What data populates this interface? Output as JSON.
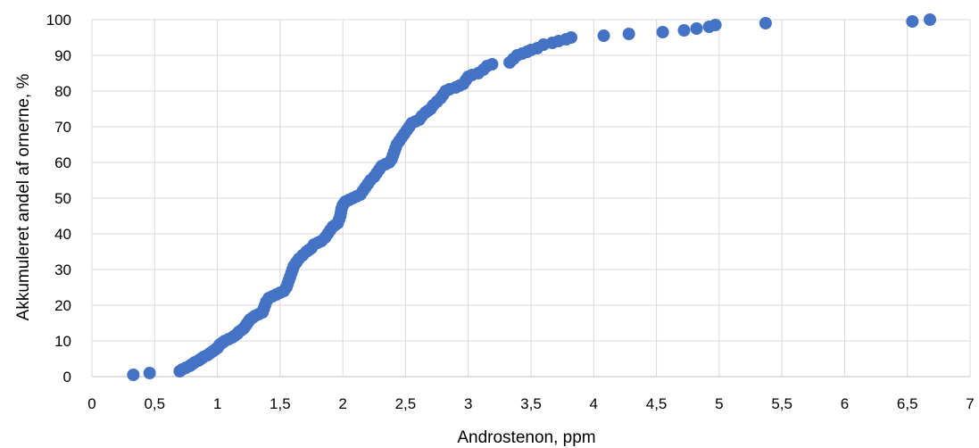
{
  "chart_data": {
    "type": "scatter",
    "title": "",
    "xlabel": "Androstenon, ppm",
    "ylabel": "Akkumuleret andel af ornerne, %",
    "xlim": [
      0,
      7
    ],
    "ylim": [
      0,
      100
    ],
    "x_ticks": [
      0,
      0.5,
      1,
      1.5,
      2,
      2.5,
      3,
      3.5,
      4,
      4.5,
      5,
      5.5,
      6,
      6.5,
      7
    ],
    "x_tick_labels": [
      "0",
      "0,5",
      "1",
      "1,5",
      "2",
      "2,5",
      "3",
      "3,5",
      "4",
      "4,5",
      "5",
      "5,5",
      "6",
      "6,5",
      "7"
    ],
    "y_ticks": [
      0,
      10,
      20,
      30,
      40,
      50,
      60,
      70,
      80,
      90,
      100
    ],
    "y_tick_labels": [
      "0",
      "10",
      "20",
      "30",
      "40",
      "50",
      "60",
      "70",
      "80",
      "90",
      "100"
    ],
    "grid": true,
    "legend": "none",
    "marker_color": "#4472C4",
    "points": [
      [
        0.33,
        0.5
      ],
      [
        0.46,
        1.0
      ],
      [
        0.7,
        1.5
      ],
      [
        0.72,
        2.0
      ],
      [
        0.75,
        2.5
      ],
      [
        0.78,
        3.0
      ],
      [
        0.8,
        3.5
      ],
      [
        0.82,
        4.0
      ],
      [
        0.85,
        4.5
      ],
      [
        0.87,
        5.0
      ],
      [
        0.89,
        5.5
      ],
      [
        0.92,
        6.0
      ],
      [
        0.94,
        6.5
      ],
      [
        0.96,
        7.0
      ],
      [
        0.98,
        7.5
      ],
      [
        1.0,
        8.0
      ],
      [
        1.01,
        8.5
      ],
      [
        1.02,
        9.0
      ],
      [
        1.04,
        9.5
      ],
      [
        1.06,
        10.0
      ],
      [
        1.09,
        10.5
      ],
      [
        1.12,
        11.0
      ],
      [
        1.14,
        11.5
      ],
      [
        1.16,
        12.0
      ],
      [
        1.17,
        12.5
      ],
      [
        1.19,
        13.0
      ],
      [
        1.21,
        13.5
      ],
      [
        1.22,
        14.0
      ],
      [
        1.23,
        14.5
      ],
      [
        1.24,
        15.0
      ],
      [
        1.25,
        15.5
      ],
      [
        1.26,
        16.0
      ],
      [
        1.28,
        16.5
      ],
      [
        1.3,
        17.0
      ],
      [
        1.33,
        17.5
      ],
      [
        1.36,
        18.0
      ],
      [
        1.37,
        19.0
      ],
      [
        1.38,
        20.0
      ],
      [
        1.39,
        21.0
      ],
      [
        1.41,
        22.0
      ],
      [
        1.44,
        22.5
      ],
      [
        1.47,
        23.0
      ],
      [
        1.5,
        23.5
      ],
      [
        1.53,
        24.0
      ],
      [
        1.55,
        25.0
      ],
      [
        1.56,
        26.0
      ],
      [
        1.57,
        27.0
      ],
      [
        1.58,
        28.0
      ],
      [
        1.59,
        29.0
      ],
      [
        1.6,
        30.0
      ],
      [
        1.61,
        31.0
      ],
      [
        1.63,
        32.0
      ],
      [
        1.65,
        33.0
      ],
      [
        1.68,
        34.0
      ],
      [
        1.71,
        35.0
      ],
      [
        1.73,
        35.5
      ],
      [
        1.75,
        36.0
      ],
      [
        1.77,
        37.0
      ],
      [
        1.8,
        37.5
      ],
      [
        1.83,
        38.0
      ],
      [
        1.86,
        39.0
      ],
      [
        1.88,
        40.0
      ],
      [
        1.9,
        41.0
      ],
      [
        1.92,
        42.0
      ],
      [
        1.94,
        42.5
      ],
      [
        1.96,
        43.0
      ],
      [
        1.97,
        44.0
      ],
      [
        1.98,
        45.0
      ],
      [
        1.985,
        46.0
      ],
      [
        1.99,
        47.0
      ],
      [
        2.0,
        48.0
      ],
      [
        2.01,
        48.5
      ],
      [
        2.02,
        49.0
      ],
      [
        2.05,
        49.5
      ],
      [
        2.08,
        50.0
      ],
      [
        2.11,
        50.5
      ],
      [
        2.14,
        51.0
      ],
      [
        2.16,
        52.0
      ],
      [
        2.18,
        53.0
      ],
      [
        2.2,
        54.0
      ],
      [
        2.22,
        55.0
      ],
      [
        2.25,
        56.0
      ],
      [
        2.27,
        57.0
      ],
      [
        2.29,
        58.0
      ],
      [
        2.31,
        59.0
      ],
      [
        2.34,
        59.5
      ],
      [
        2.37,
        60.0
      ],
      [
        2.39,
        61.0
      ],
      [
        2.4,
        62.0
      ],
      [
        2.41,
        63.0
      ],
      [
        2.42,
        64.0
      ],
      [
        2.43,
        65.0
      ],
      [
        2.45,
        66.0
      ],
      [
        2.47,
        67.0
      ],
      [
        2.49,
        68.0
      ],
      [
        2.51,
        69.0
      ],
      [
        2.53,
        70.0
      ],
      [
        2.55,
        71.0
      ],
      [
        2.58,
        71.5
      ],
      [
        2.61,
        72.0
      ],
      [
        2.63,
        73.0
      ],
      [
        2.66,
        74.0
      ],
      [
        2.68,
        74.5
      ],
      [
        2.7,
        75.0
      ],
      [
        2.72,
        76.0
      ],
      [
        2.75,
        77.0
      ],
      [
        2.78,
        78.0
      ],
      [
        2.8,
        79.0
      ],
      [
        2.82,
        80.0
      ],
      [
        2.85,
        80.5
      ],
      [
        2.9,
        81.0
      ],
      [
        2.93,
        81.5
      ],
      [
        2.96,
        82.0
      ],
      [
        2.98,
        83.0
      ],
      [
        3.0,
        84.0
      ],
      [
        3.03,
        84.5
      ],
      [
        3.08,
        85.0
      ],
      [
        3.12,
        86.0
      ],
      [
        3.15,
        87.0
      ],
      [
        3.19,
        87.5
      ],
      [
        3.33,
        88.0
      ],
      [
        3.36,
        89.0
      ],
      [
        3.39,
        90.0
      ],
      [
        3.43,
        90.5
      ],
      [
        3.47,
        91.0
      ],
      [
        3.5,
        91.5
      ],
      [
        3.55,
        92.0
      ],
      [
        3.6,
        93.0
      ],
      [
        3.67,
        93.5
      ],
      [
        3.72,
        94.0
      ],
      [
        3.78,
        94.5
      ],
      [
        3.82,
        95.0
      ],
      [
        4.08,
        95.5
      ],
      [
        4.28,
        96.0
      ],
      [
        4.55,
        96.5
      ],
      [
        4.72,
        97.0
      ],
      [
        4.82,
        97.5
      ],
      [
        4.92,
        98.0
      ],
      [
        4.97,
        98.5
      ],
      [
        5.37,
        99.0
      ],
      [
        6.54,
        99.5
      ],
      [
        6.68,
        100.0
      ]
    ]
  }
}
